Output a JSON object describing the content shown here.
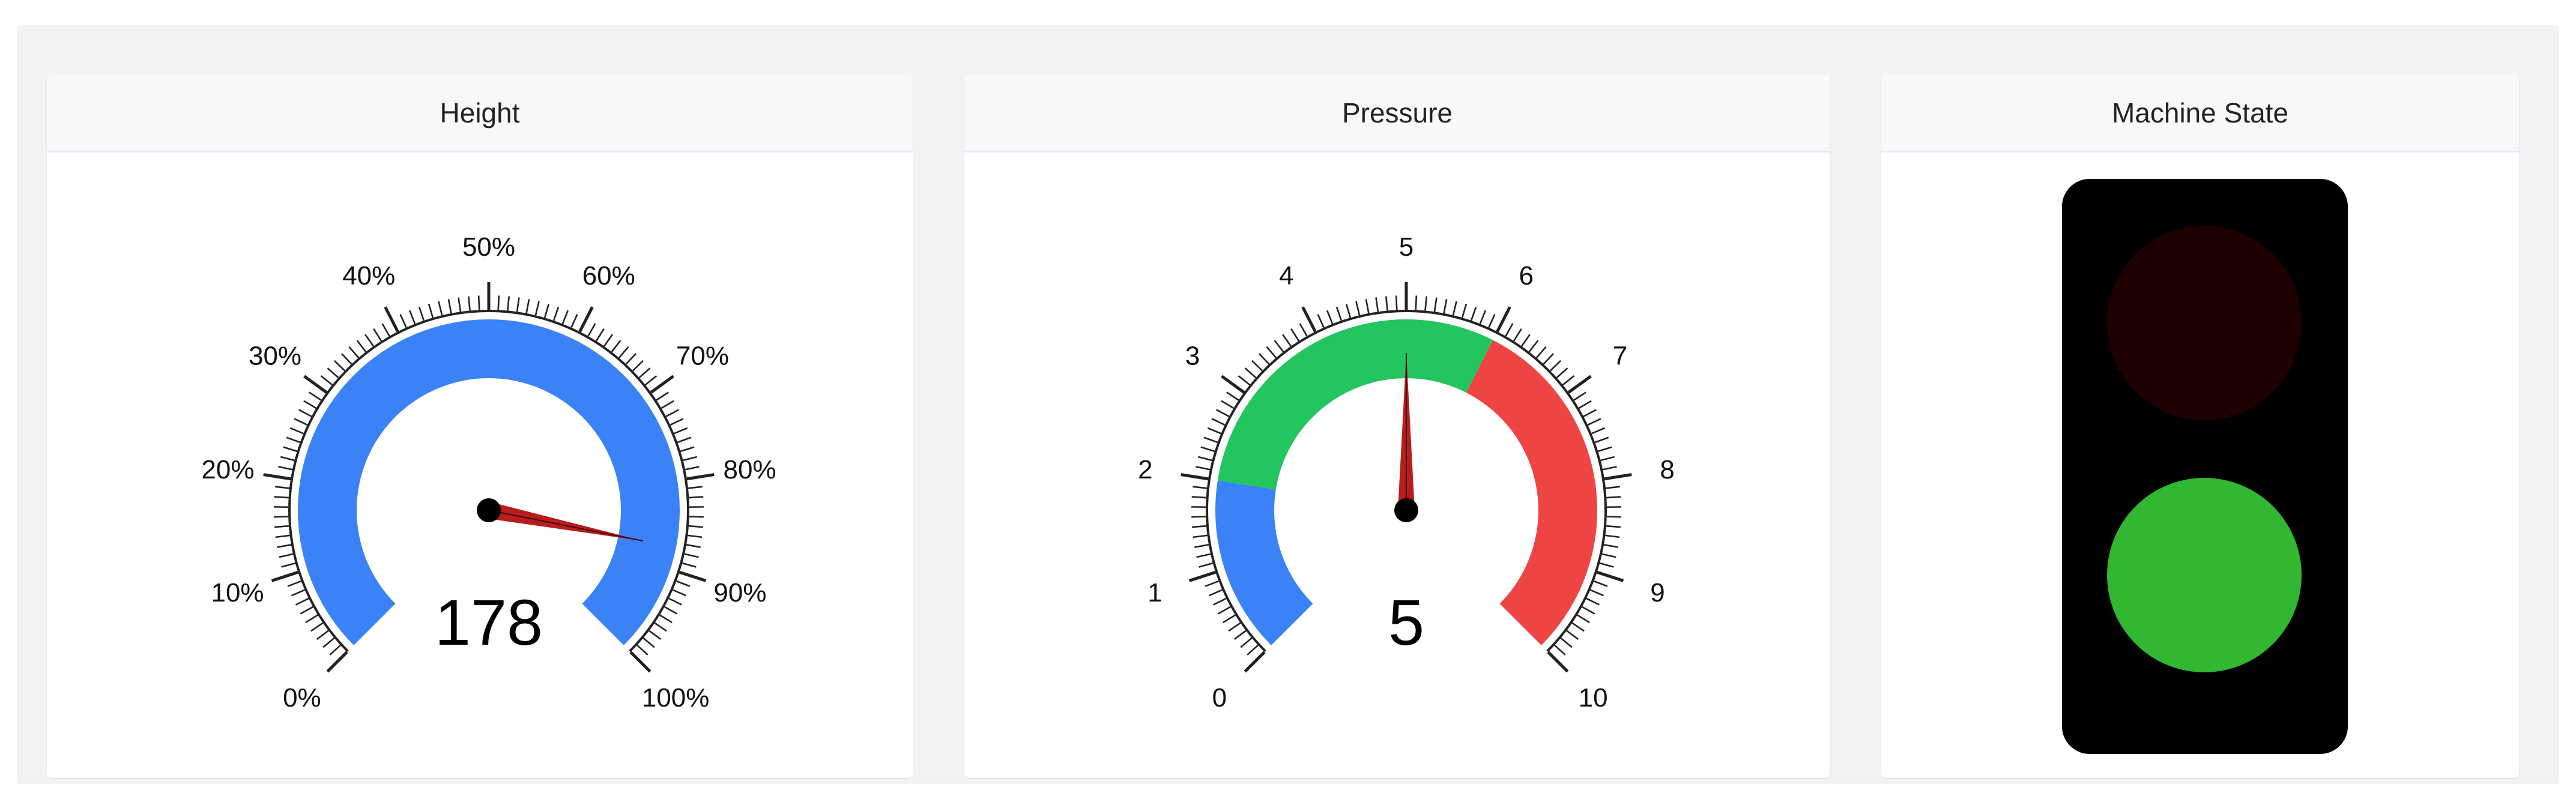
{
  "panels": [
    {
      "title": "Height",
      "gauge": {
        "value": 178,
        "needle_fraction": 0.875,
        "tick_labels": [
          "0%",
          "10%",
          "20%",
          "30%",
          "40%",
          "50%",
          "60%",
          "70%",
          "80%",
          "90%",
          "100%"
        ],
        "bands": [
          {
            "from": 0,
            "to": 1,
            "color": "#3b82f6"
          }
        ]
      }
    },
    {
      "title": "Pressure",
      "gauge": {
        "value": "5",
        "needle_fraction": 0.5,
        "tick_labels": [
          "0",
          "1",
          "2",
          "3",
          "4",
          "5",
          "6",
          "7",
          "8",
          "9",
          "10"
        ],
        "bands": [
          {
            "from": 0,
            "to": 0.2,
            "color": "#3b82f6"
          },
          {
            "from": 0.2,
            "to": 0.6,
            "color": "#22c55e"
          },
          {
            "from": 0.6,
            "to": 1,
            "color": "#ef4444"
          }
        ]
      }
    },
    {
      "title": "Machine State",
      "traffic_light": {
        "top_light": {
          "state": "off",
          "color": "#1e0000"
        },
        "bottom_light": {
          "state": "on",
          "color": "#31b732"
        }
      }
    }
  ],
  "colors": {
    "needle": "#b91c1c",
    "hub": "#000000",
    "ticks": "#222222",
    "frame_bg": "#f2f3f5",
    "traffic_body": "#000000"
  }
}
